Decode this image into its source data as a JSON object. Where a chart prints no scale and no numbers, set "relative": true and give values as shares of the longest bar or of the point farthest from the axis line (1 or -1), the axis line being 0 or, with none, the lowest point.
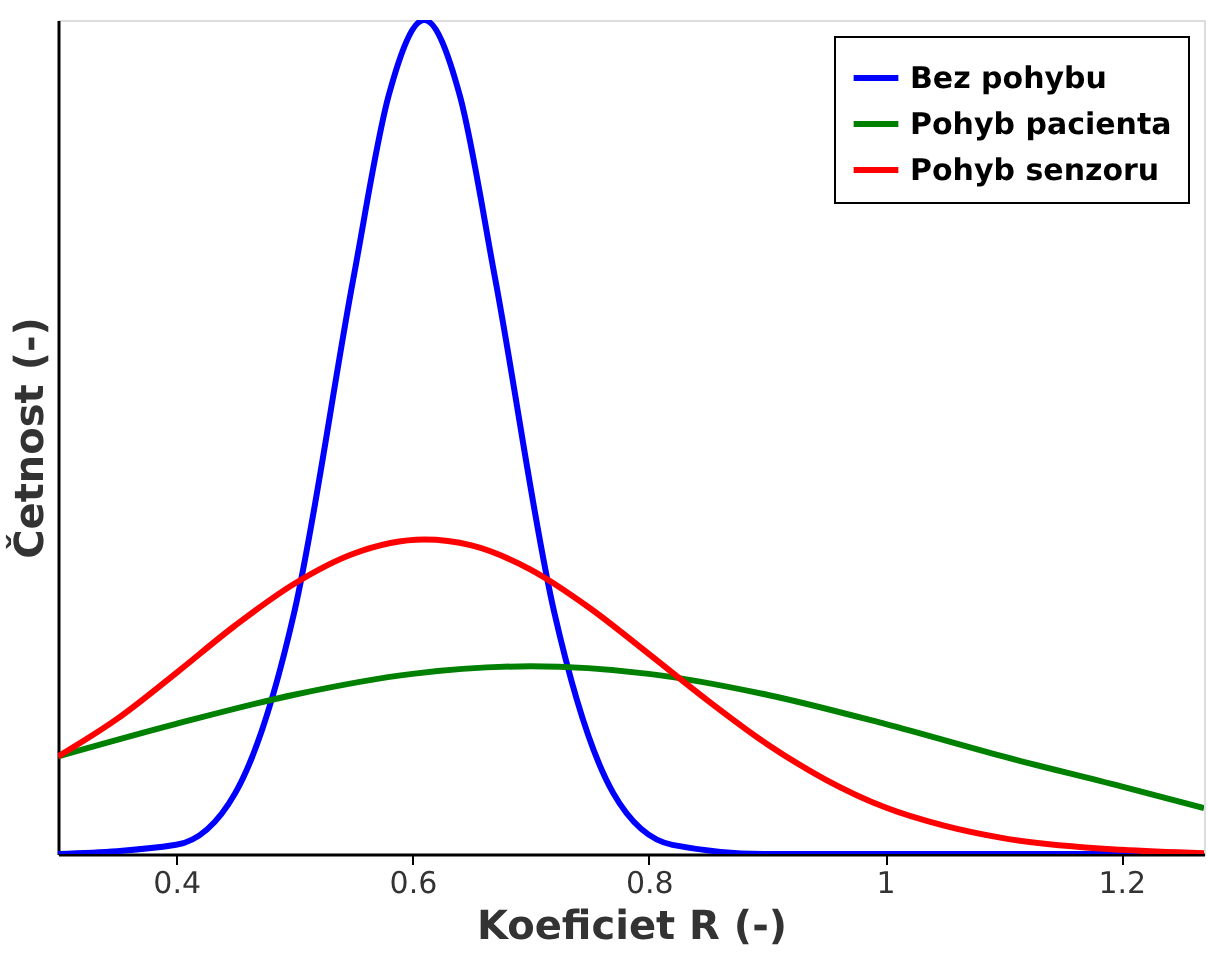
{
  "chart_data": {
    "type": "line",
    "xlabel": "Koeficiet R (-)",
    "ylabel": "Četnost (-)",
    "relative": true,
    "legend": "top right",
    "grid": false,
    "marker": "none",
    "line_style": "solid",
    "xlim": [
      0.3,
      1.27
    ],
    "xticks": [
      0.4,
      0.6,
      0.8,
      1,
      1.2
    ],
    "series": [
      {
        "name": "Bez pohybu",
        "color": "#0000ff",
        "x": [
          0.3,
          0.4,
          0.45,
          0.5,
          0.55,
          0.58,
          0.61,
          0.64,
          0.67,
          0.72,
          0.77,
          0.82,
          0.9,
          1.27
        ],
        "values": [
          0,
          0.011,
          0.073,
          0.29,
          0.69,
          0.91,
          1,
          0.91,
          0.69,
          0.29,
          0.073,
          0.011,
          0,
          0
        ]
      },
      {
        "name": "Pohyb pacienta",
        "color": "#008000",
        "x": [
          0.3,
          0.4,
          0.5,
          0.6,
          0.7,
          0.8,
          0.9,
          1.0,
          1.1,
          1.2,
          1.27
        ],
        "values": [
          0.117,
          0.156,
          0.191,
          0.216,
          0.225,
          0.216,
          0.191,
          0.156,
          0.117,
          0.081,
          0.055
        ]
      },
      {
        "name": "Pohyb senzoru",
        "color": "#ff0000",
        "x": [
          0.3,
          0.35,
          0.4,
          0.45,
          0.5,
          0.55,
          0.61,
          0.65,
          0.7,
          0.75,
          0.8,
          0.85,
          0.9,
          0.95,
          1.0,
          1.05,
          1.1,
          1.2,
          1.27
        ],
        "values": [
          0.117,
          0.162,
          0.217,
          0.274,
          0.324,
          0.36,
          0.377,
          0.37,
          0.341,
          0.295,
          0.24,
          0.184,
          0.132,
          0.089,
          0.056,
          0.034,
          0.019,
          0.005,
          0.001
        ]
      }
    ]
  }
}
